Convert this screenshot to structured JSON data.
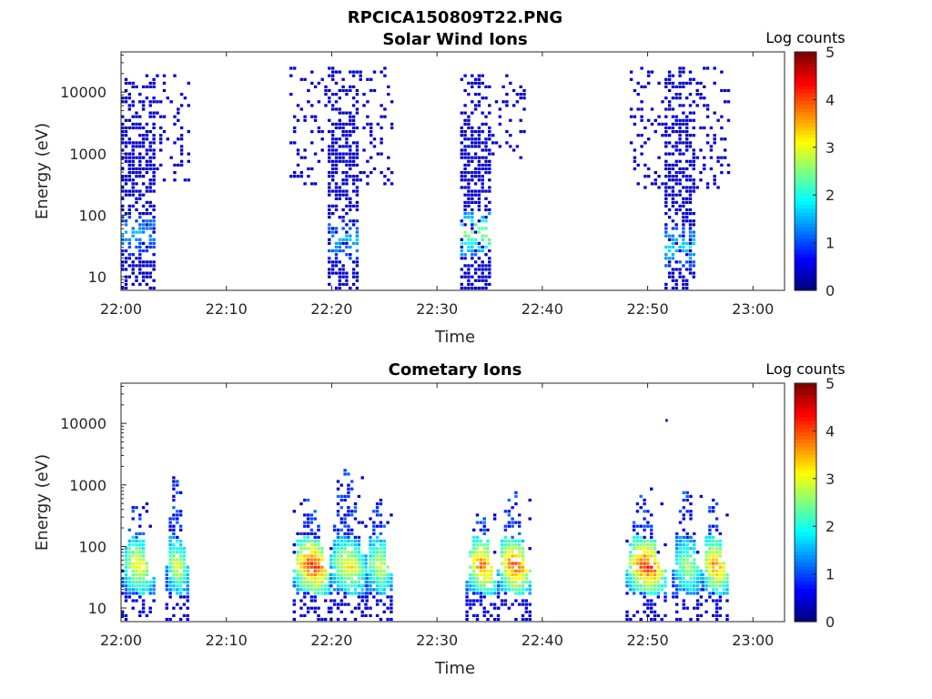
{
  "figure": {
    "title": "RPCICA150809T22.PNG"
  },
  "chart_data": [
    {
      "type": "heatmap",
      "title": "Solar Wind Ions",
      "xlabel": "Time",
      "ylabel": "Energy (eV)",
      "x_ticks": [
        "22:00",
        "22:10",
        "22:20",
        "22:30",
        "22:40",
        "22:50",
        "23:00"
      ],
      "xlim_minutes": [
        0,
        63
      ],
      "y_ticks": [
        "10",
        "100",
        "1000",
        "10000"
      ],
      "y_scale": "log",
      "ylim": [
        6,
        45000
      ],
      "colorbar": {
        "label": "Log counts",
        "ticks": [
          "0",
          "1",
          "2",
          "3",
          "4",
          "5"
        ],
        "range": [
          0,
          5
        ]
      },
      "bursts": [
        {
          "start_min": 0.0,
          "end_min": 6.3,
          "core_end_min": 3.1,
          "sparse_floor_eV": 350,
          "max_eV": 20000,
          "peak_log": 1.3,
          "peak_eV": 50
        },
        {
          "start_min": 16.0,
          "end_min": 25.6,
          "core_start_min": 19.3,
          "core_end_min": 22.3,
          "sparse_floor_eV": 300,
          "max_eV": 25000,
          "peak_log": 1.4,
          "peak_eV": 40
        },
        {
          "start_min": 32.2,
          "end_min": 38.2,
          "core_end_min": 35.0,
          "sparse_floor_eV": 700,
          "max_eV": 20000,
          "peak_log": 2.5,
          "peak_eV": 50
        },
        {
          "start_min": 48.3,
          "end_min": 57.6,
          "core_start_min": 51.3,
          "core_end_min": 54.5,
          "sparse_floor_eV": 250,
          "max_eV": 25000,
          "peak_log": 1.6,
          "peak_eV": 30
        }
      ]
    },
    {
      "type": "heatmap",
      "title": "Cometary Ions",
      "xlabel": "Time",
      "ylabel": "Energy (eV)",
      "x_ticks": [
        "22:00",
        "22:10",
        "22:20",
        "22:30",
        "22:40",
        "22:50",
        "23:00"
      ],
      "xlim_minutes": [
        0,
        63
      ],
      "y_ticks": [
        "10",
        "100",
        "1000",
        "10000"
      ],
      "y_scale": "log",
      "ylim": [
        6,
        45000
      ],
      "colorbar": {
        "label": "Log counts",
        "ticks": [
          "0",
          "1",
          "2",
          "3",
          "4",
          "5"
        ],
        "range": [
          0,
          5
        ]
      },
      "bursts": [
        {
          "start_min": 0.0,
          "end_min": 3.0,
          "peak_log": 3.0,
          "peak_eV": 40,
          "max_eV": 500
        },
        {
          "start_min": 4.2,
          "end_min": 6.3,
          "peak_log": 2.8,
          "peak_eV": 40,
          "max_eV": 1300
        },
        {
          "start_min": 16.3,
          "end_min": 19.8,
          "peak_log": 4.0,
          "peak_eV": 40,
          "max_eV": 900
        },
        {
          "start_min": 19.8,
          "end_min": 23.2,
          "peak_log": 3.0,
          "peak_eV": 40,
          "max_eV": 2200
        },
        {
          "start_min": 23.2,
          "end_min": 25.7,
          "peak_log": 2.8,
          "peak_eV": 40,
          "max_eV": 700
        },
        {
          "start_min": 32.7,
          "end_min": 35.7,
          "peak_log": 3.7,
          "peak_eV": 40,
          "max_eV": 400
        },
        {
          "start_min": 35.7,
          "end_min": 38.8,
          "peak_log": 3.8,
          "peak_eV": 40,
          "max_eV": 1000
        },
        {
          "start_min": 47.9,
          "end_min": 51.6,
          "peak_log": 4.0,
          "peak_eV": 40,
          "max_eV": 850
        },
        {
          "start_min": 52.3,
          "end_min": 55.1,
          "peak_log": 2.5,
          "peak_eV": 40,
          "max_eV": 1000
        },
        {
          "start_min": 55.1,
          "end_min": 57.6,
          "peak_log": 3.6,
          "peak_eV": 40,
          "max_eV": 700
        }
      ],
      "isolated_points": [
        {
          "time_min": 51.7,
          "eV": 11000
        }
      ]
    }
  ]
}
